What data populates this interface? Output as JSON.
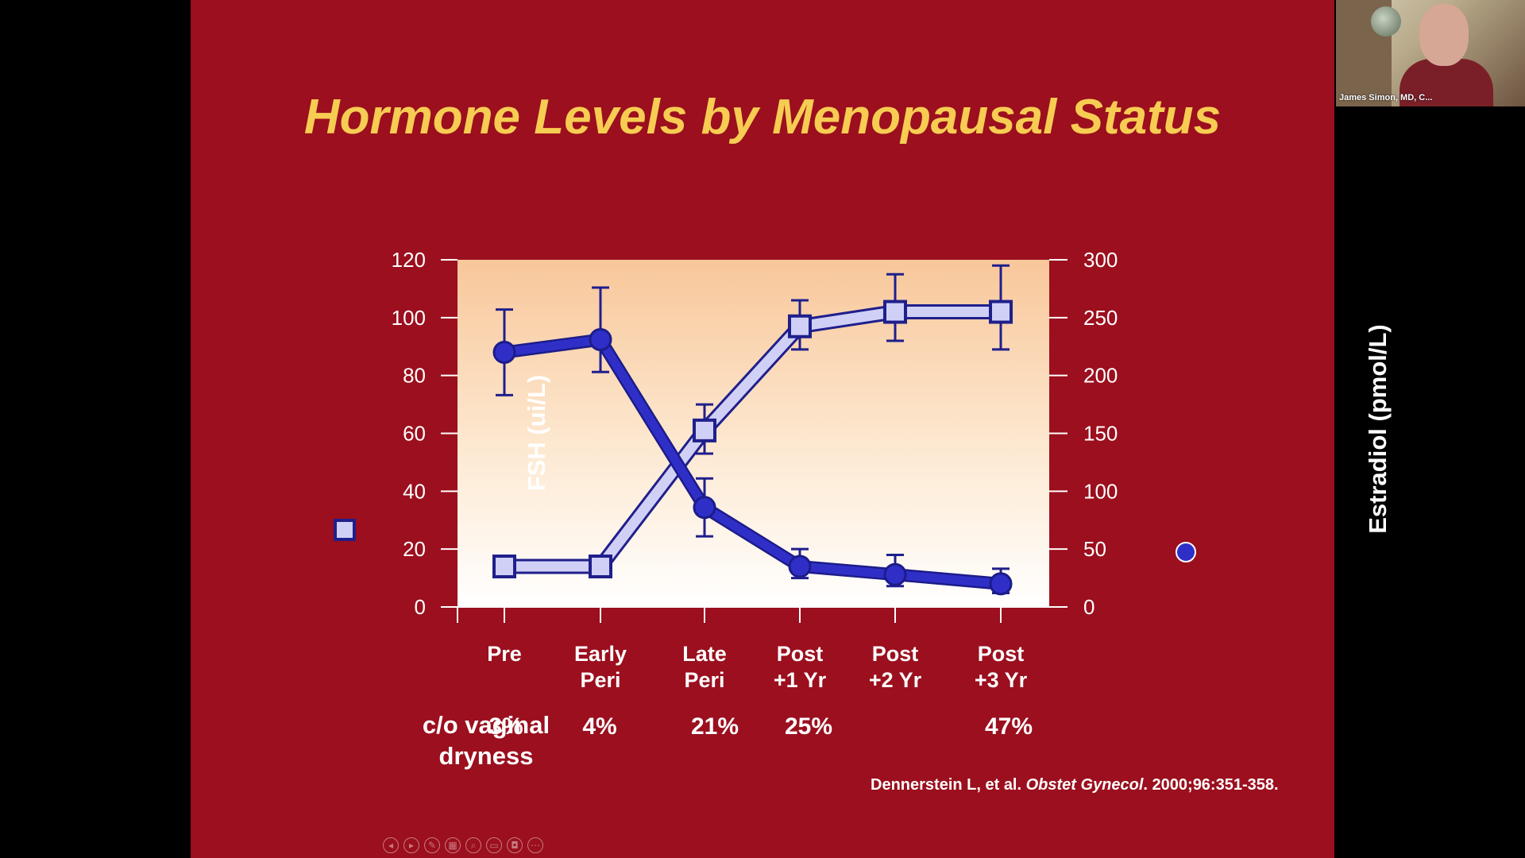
{
  "slide": {
    "title": "Hormone Levels by Menopausal Status",
    "row_label": [
      "c/o vaginal",
      "dryness"
    ],
    "citation_authors": "Dennerstein L, et al. ",
    "citation_journal": "Obstet Gynecol",
    "citation_rest": ". 2000;96:351-358."
  },
  "chart_data": {
    "type": "line",
    "categories": [
      [
        "Pre"
      ],
      [
        "Early",
        "Peri"
      ],
      [
        "Late",
        "Peri"
      ],
      [
        "Post",
        "+1 Yr"
      ],
      [
        "Post",
        "+2 Yr"
      ],
      [
        "Post",
        "+3 Yr"
      ]
    ],
    "y_left": {
      "label": "FSH (ui/L)",
      "range": [
        0,
        120
      ],
      "ticks": [
        0,
        20,
        40,
        60,
        80,
        100,
        120
      ]
    },
    "y_right": {
      "label": "Estradiol (pmol/L)",
      "range": [
        0,
        300
      ],
      "ticks": [
        0,
        50,
        100,
        150,
        200,
        250,
        300
      ]
    },
    "series": [
      {
        "name": "FSH",
        "axis": "left",
        "marker": "square",
        "color": "#d0d0f6",
        "values": [
          14,
          14,
          61,
          97,
          102,
          102
        ],
        "error_low": [
          null,
          null,
          53,
          89,
          92,
          89
        ],
        "error_high": [
          null,
          null,
          70,
          106,
          115,
          118
        ]
      },
      {
        "name": "Estradiol",
        "axis": "right",
        "marker": "circle",
        "color": "#2f2fc8",
        "values": [
          220,
          231,
          86,
          35,
          28,
          20
        ],
        "error_low": [
          183,
          203,
          61,
          25,
          18,
          12
        ],
        "error_high": [
          257,
          276,
          111,
          50,
          45,
          33
        ]
      }
    ],
    "vaginal_dryness": [
      "3%",
      "4%",
      "21%",
      "25%",
      "",
      "47%"
    ],
    "grid": false,
    "background": "gradient"
  },
  "webcam": {
    "name": "James Simon, MD, C..."
  },
  "colors": {
    "slide_bg": "#9b0f1e",
    "title": "#f7cc52",
    "fsh": "#d0d0f6",
    "estradiol": "#2f2fc8"
  }
}
